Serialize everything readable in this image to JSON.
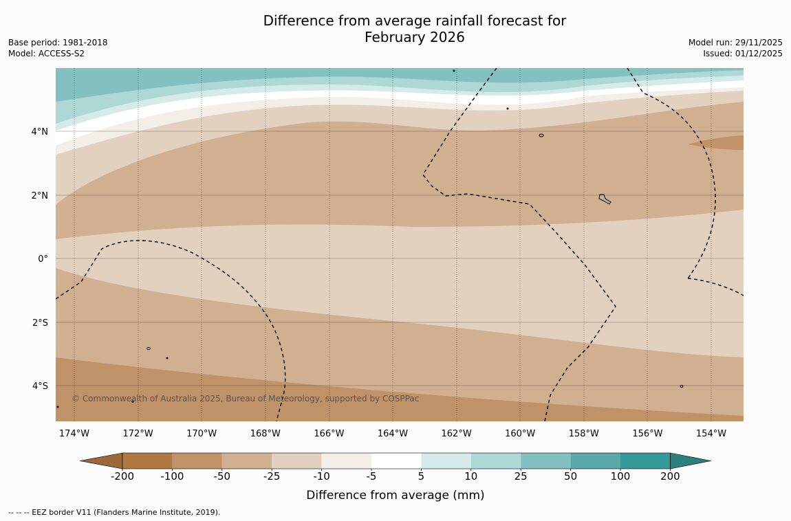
{
  "title_line1": "Difference from average rainfall forecast for",
  "title_line2": "February 2026",
  "base_period": "Base period: 1981-2018",
  "model": "Model: ACCESS-S2",
  "model_run": "Model run: 29/11/2025",
  "issued": "Issued: 01/12/2025",
  "copyright": "© Commonwealth of Australia 2025, Bureau of Meteorology, supported by COSPPac",
  "lat_labels": [
    "4°N",
    "2°N",
    "0°",
    "2°S",
    "4°S"
  ],
  "lon_labels": [
    "174°W",
    "172°W",
    "170°W",
    "168°W",
    "166°W",
    "164°W",
    "162°W",
    "160°W",
    "158°W",
    "156°W",
    "154°W"
  ],
  "colorbar": {
    "title": "Difference from average (mm)",
    "ticks": [
      "-200",
      "-100",
      "-50",
      "-25",
      "-10",
      "-5",
      "5",
      "10",
      "25",
      "50",
      "100",
      "200"
    ],
    "colors": [
      "#b07843",
      "#c09268",
      "#d1b091",
      "#e3d1bf",
      "#f3eee8",
      "#ffffff",
      "#d5ebe8",
      "#aed8d6",
      "#82c1bf",
      "#58a9a7",
      "#349a97"
    ],
    "under_color": "#9d6838",
    "over_color": "#2d807d"
  },
  "footnote": "--  --  -- EEZ border V11 (Flanders Marine Institute, 2019)."
}
